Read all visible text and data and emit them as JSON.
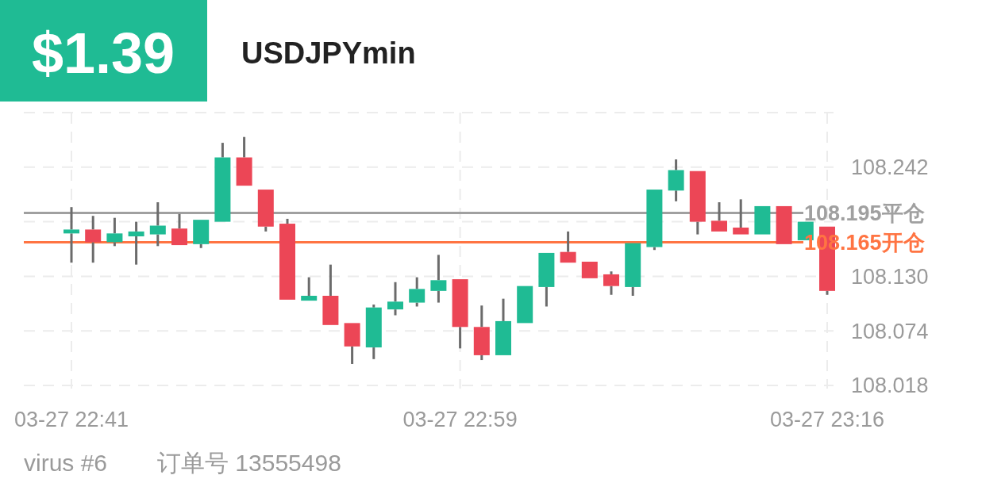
{
  "chart_data": {
    "type": "candlestick",
    "title": "USDJPYmin",
    "annotations": [
      "$1.39",
      "virus #6",
      "订单号 13555498"
    ],
    "categories": [
      "03-27 22:41",
      null,
      null,
      null,
      null,
      null,
      null,
      null,
      null,
      null,
      null,
      null,
      null,
      null,
      null,
      null,
      null,
      null,
      "03-27 22:59",
      null,
      null,
      null,
      null,
      null,
      null,
      null,
      null,
      null,
      null,
      null,
      null,
      null,
      null,
      null,
      null,
      "03-27 23:16"
    ],
    "ohlc": [
      [
        108.174,
        108.201,
        108.144,
        108.178
      ],
      [
        108.178,
        108.192,
        108.144,
        108.165
      ],
      [
        108.165,
        108.19,
        108.161,
        108.174
      ],
      [
        108.171,
        108.186,
        108.142,
        108.176
      ],
      [
        108.173,
        108.206,
        108.161,
        108.182
      ],
      [
        108.179,
        108.194,
        108.162,
        108.162
      ],
      [
        108.163,
        108.188,
        108.159,
        108.188
      ],
      [
        108.186,
        108.267,
        108.186,
        108.252
      ],
      [
        108.252,
        108.273,
        108.223,
        108.223
      ],
      [
        108.219,
        108.219,
        108.176,
        108.181
      ],
      [
        108.184,
        108.189,
        108.106,
        108.106
      ],
      [
        108.105,
        108.129,
        108.105,
        108.11
      ],
      [
        108.11,
        108.142,
        108.08,
        108.08
      ],
      [
        108.082,
        108.082,
        108.04,
        108.058
      ],
      [
        108.057,
        108.101,
        108.045,
        108.098
      ],
      [
        108.096,
        108.124,
        108.09,
        108.104
      ],
      [
        108.103,
        108.129,
        108.099,
        108.117
      ],
      [
        108.115,
        108.152,
        108.103,
        108.126
      ],
      [
        108.127,
        108.127,
        108.056,
        108.078
      ],
      [
        108.078,
        108.1,
        108.044,
        108.049
      ],
      [
        108.049,
        108.107,
        108.049,
        108.084
      ],
      [
        108.082,
        108.12,
        108.082,
        108.12
      ],
      [
        108.119,
        108.154,
        108.099,
        108.154
      ],
      [
        108.155,
        108.176,
        108.144,
        108.144
      ],
      [
        108.145,
        108.145,
        108.128,
        108.128
      ],
      [
        108.132,
        108.135,
        108.111,
        108.12
      ],
      [
        108.119,
        108.164,
        108.11,
        108.164
      ],
      [
        108.16,
        108.219,
        108.157,
        108.219
      ],
      [
        108.218,
        108.25,
        108.207,
        108.239
      ],
      [
        108.238,
        108.238,
        108.173,
        108.186
      ],
      [
        108.187,
        108.206,
        108.176,
        108.176
      ],
      [
        108.18,
        108.209,
        108.173,
        108.173
      ],
      [
        108.173,
        108.202,
        108.173,
        108.202
      ],
      [
        108.202,
        108.202,
        108.163,
        108.163
      ],
      [
        108.167,
        108.186,
        108.167,
        108.186
      ],
      [
        108.181,
        108.181,
        108.111,
        108.115
      ]
    ],
    "colors": [
      "#1fbb94",
      "#ec4656",
      "#1fbb94",
      "#1fbb94",
      "#1fbb94",
      "#ec4656",
      "#1fbb94",
      "#1fbb94",
      "#ec4656",
      "#ec4656",
      "#ec4656",
      "#1fbb94",
      "#ec4656",
      "#ec4656",
      "#1fbb94",
      "#1fbb94",
      "#1fbb94",
      "#1fbb94",
      "#ec4656",
      "#ec4656",
      "#1fbb94",
      "#1fbb94",
      "#1fbb94",
      "#ec4656",
      "#ec4656",
      "#ec4656",
      "#1fbb94",
      "#1fbb94",
      "#1fbb94",
      "#ec4656",
      "#ec4656",
      "#ec4656",
      "#1fbb94",
      "#ec4656",
      "#1fbb94",
      "#ec4656"
    ],
    "ylim": [
      108.018,
      108.298
    ],
    "yticks": [
      108.018,
      108.074,
      {
        "value": 108.13,
        "label": "108.130"
      },
      {
        "value": 108.186,
        "label": null
      },
      108.242,
      {
        "value": 108.298,
        "label": null
      }
    ],
    "grid": true,
    "ref_lines": [
      {
        "axis": "y",
        "value": 108.195,
        "label": "108.195平仓",
        "color": "#a0a0a0"
      },
      {
        "axis": "y",
        "value": 108.165,
        "label": "108.165开仓",
        "color": "#ff7442"
      }
    ]
  }
}
